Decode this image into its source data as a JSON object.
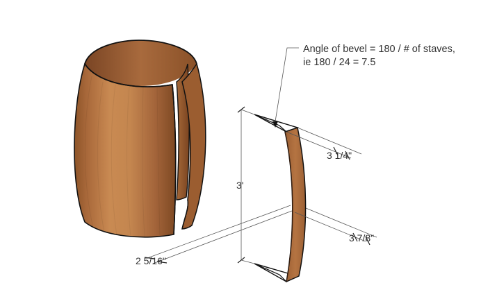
{
  "annotation": {
    "line1": "Angle of bevel = 180 / # of staves,",
    "line2": "ie 180 / 24 = 7.5"
  },
  "dimensions": {
    "height": "3'",
    "top_width": "3 1/4\"",
    "bottom_width": "3 7/8\"",
    "thickness": "2 5/16\""
  },
  "colors": {
    "wood_light": "#c98a52",
    "wood_mid": "#b47440",
    "wood_dark": "#8d5428",
    "stave_face": "#b06f3c",
    "outline": "#111111",
    "dim": "#555555"
  }
}
